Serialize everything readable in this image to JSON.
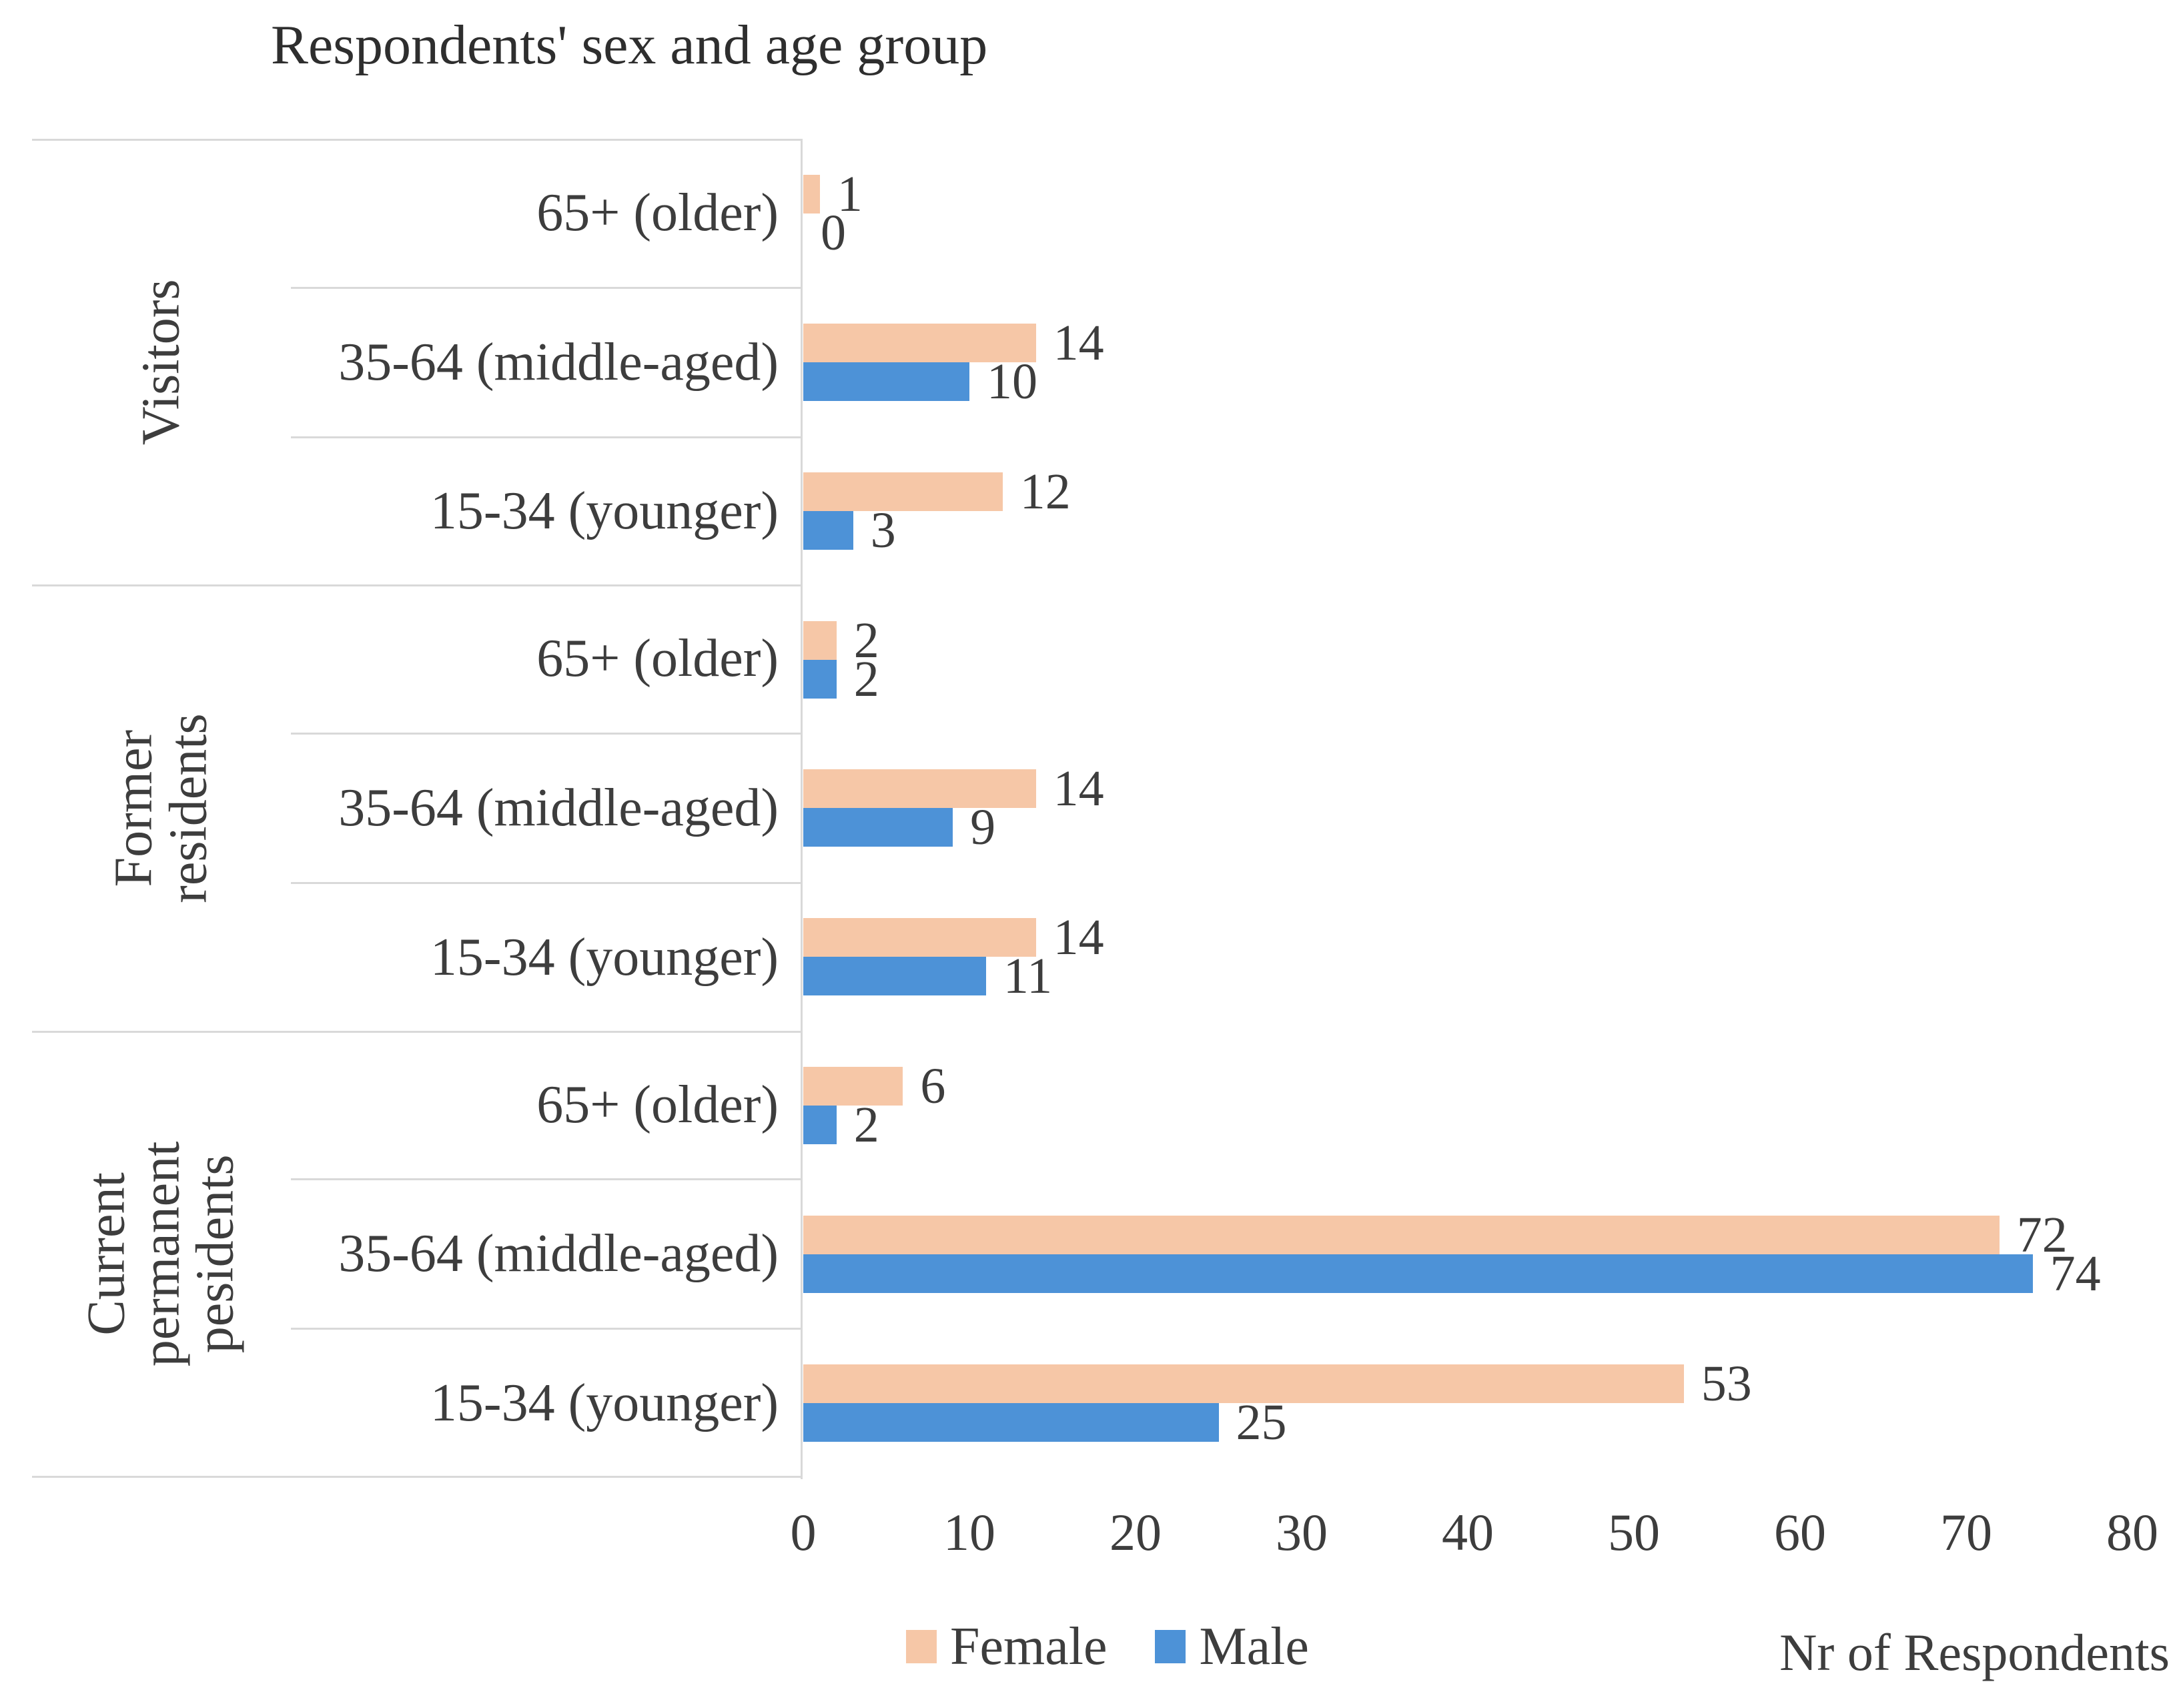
{
  "title": "Respondents' sex and age group",
  "axis": {
    "label": "Nr of Respondents",
    "ticks": [
      "0",
      "10",
      "20",
      "30",
      "40",
      "50",
      "60",
      "70",
      "80"
    ],
    "max": 80
  },
  "legend": {
    "female": "Female",
    "male": "Male"
  },
  "colors": {
    "female": "#F6C7A7",
    "male": "#4D92D7",
    "grid_line": "#D9D9D9",
    "text": "#3D3D3D"
  },
  "groups": [
    {
      "label": "Visitors",
      "rows": [
        {
          "label": "65+ (older)",
          "female": 1,
          "male": 0
        },
        {
          "label": "35-64 (middle-aged)",
          "female": 14,
          "male": 10
        },
        {
          "label": "15-34 (younger)",
          "female": 12,
          "male": 3
        }
      ]
    },
    {
      "label": "Former residents",
      "rows": [
        {
          "label": "65+ (older)",
          "female": 2,
          "male": 2
        },
        {
          "label": "35-64 (middle-aged)",
          "female": 14,
          "male": 9
        },
        {
          "label": "15-34 (younger)",
          "female": 14,
          "male": 11
        }
      ]
    },
    {
      "label": "Current\npermanent\npesidents",
      "rows": [
        {
          "label": "65+ (older)",
          "female": 6,
          "male": 2
        },
        {
          "label": "35-64 (middle-aged)",
          "female": 72,
          "male": 74
        },
        {
          "label": "15-34 (younger)",
          "female": 53,
          "male": 25
        }
      ]
    }
  ],
  "chart_data": {
    "type": "bar",
    "orientation": "horizontal",
    "title": "Respondents' sex and age group",
    "xlabel": "Nr of Respondents",
    "ylabel": "",
    "xlim": [
      0,
      80
    ],
    "xticks": [
      0,
      10,
      20,
      30,
      40,
      50,
      60,
      70,
      80
    ],
    "grid": false,
    "legend_position": "bottom",
    "groups": [
      "Visitors",
      "Former residents",
      "Current permanent pesidents"
    ],
    "categories_per_group": [
      "65+ (older)",
      "35-64 (middle-aged)",
      "15-34 (younger)"
    ],
    "series": [
      {
        "name": "Female",
        "color": "#F6C7A7",
        "values": {
          "Visitors": [
            1,
            14,
            12
          ],
          "Former residents": [
            2,
            14,
            14
          ],
          "Current permanent pesidents": [
            6,
            72,
            53
          ]
        }
      },
      {
        "name": "Male",
        "color": "#4D92D7",
        "values": {
          "Visitors": [
            0,
            10,
            3
          ],
          "Former residents": [
            2,
            9,
            11
          ],
          "Current permanent pesidents": [
            2,
            74,
            25
          ]
        }
      }
    ],
    "data_labels": true,
    "note": "Rows ordered top-to-bottom within each group: 65+, 35-64, 15-34; Female bar above Male bar"
  }
}
